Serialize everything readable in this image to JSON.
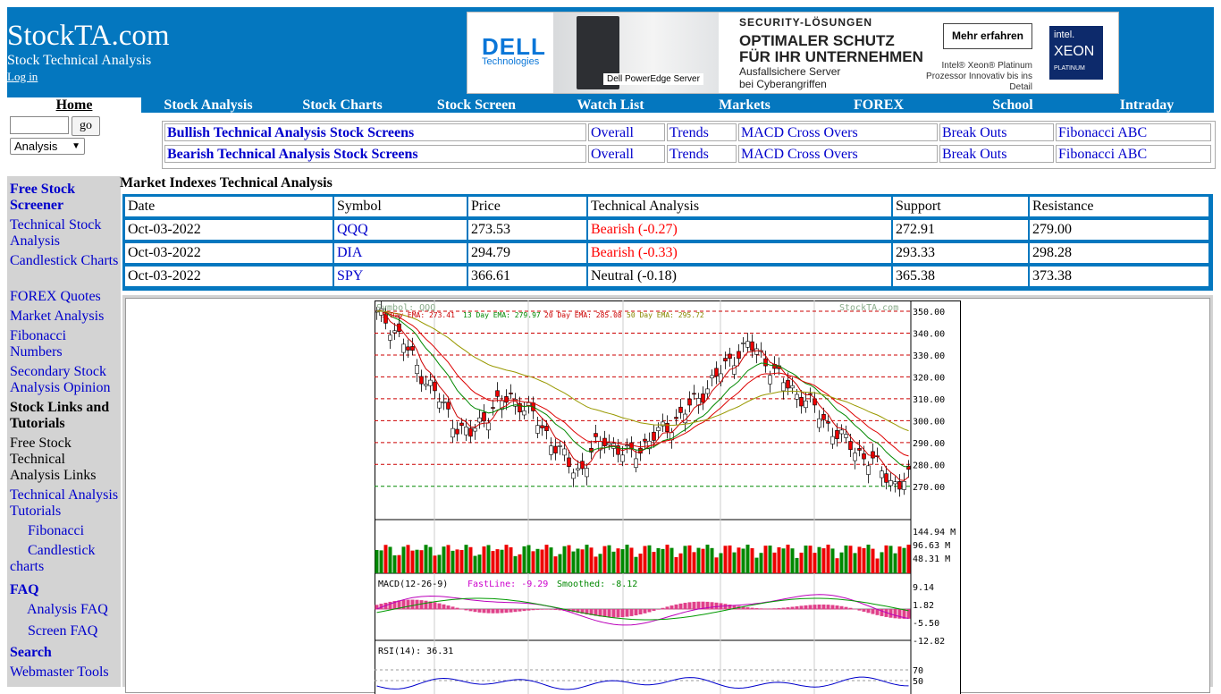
{
  "site": {
    "title": "StockTA.com",
    "subtitle": "Stock Technical Analysis",
    "login": "Log in"
  },
  "ad": {
    "brand": "DELL",
    "brand_sub": "Technologies",
    "server_caption": "Dell PowerEdge Server",
    "kicker": "SECURITY-LÖSUNGEN",
    "headline1": "OPTIMALER SCHUTZ",
    "headline2": "FÜR IHR UNTERNEHMEN",
    "body1": "Ausfallsichere Server",
    "body2": "bei Cyberangriffen",
    "cta": "Mehr erfahren",
    "note1": "Intel® Xeon® Platinum",
    "note2": "Prozessor Innovativ bis ins Detail",
    "intel": "intel.",
    "xeon": "XEON",
    "platinum": "PLATINUM"
  },
  "nav": {
    "home": "Home",
    "items": [
      "Stock Analysis",
      "Stock Charts",
      "Stock Screen",
      "Watch List",
      "Markets",
      "FOREX",
      "School",
      "Intraday"
    ]
  },
  "search": {
    "value": "",
    "go": "go",
    "select": "Analysis"
  },
  "screens": {
    "rows": [
      {
        "title": "Bullish Technical Analysis Stock Screens",
        "links": [
          "Overall",
          "Trends",
          "MACD Cross Overs",
          "Break Outs",
          "Fibonacci ABC"
        ]
      },
      {
        "title": "Bearish Technical Analysis Stock Screens",
        "links": [
          "Overall",
          "Trends",
          "MACD Cross Overs",
          "Break Outs",
          "Fibonacci ABC"
        ]
      }
    ]
  },
  "sidebar": {
    "free_screener": "Free Stock Screener",
    "ta": "Technical Stock Analysis",
    "candle": "Candlestick Charts",
    "forex": "FOREX Quotes",
    "market": "Market Analysis",
    "fib": "Fibonacci Numbers",
    "secondary": "Secondary Stock Analysis Opinion",
    "links_head": "Stock Links and Tutorials",
    "free_links": "Free Stock Technical Analysis Links",
    "tutorials": "Technical Analysis Tutorials",
    "fib_sub": "Fibonacci",
    "candle_sub": "Candlestick charts",
    "faq": "FAQ",
    "analysis_faq": "Analysis FAQ",
    "screen_faq": "Screen FAQ",
    "search": "Search",
    "webmaster": "Webmaster Tools"
  },
  "main": {
    "title": "Market Indexes Technical Analysis"
  },
  "table": {
    "headers": [
      "Date",
      "Symbol",
      "Price",
      "Technical Analysis",
      "Support",
      "Resistance"
    ],
    "rows": [
      {
        "date": "Oct-03-2022",
        "symbol": "QQQ",
        "price": "273.53",
        "ta": "Bearish (-0.27)",
        "ta_color": "#ff0000",
        "support": "272.91",
        "resistance": "279.00"
      },
      {
        "date": "Oct-03-2022",
        "symbol": "DIA",
        "price": "294.79",
        "ta": "Bearish (-0.33)",
        "ta_color": "#ff0000",
        "support": "293.33",
        "resistance": "298.28"
      },
      {
        "date": "Oct-03-2022",
        "symbol": "SPY",
        "price": "366.61",
        "ta": "Neutral (-0.18)",
        "ta_color": "#000000",
        "support": "365.38",
        "resistance": "373.38"
      }
    ]
  },
  "chart": {
    "symbol_label": "Symbol: QQQ",
    "watermark": "StockTA.com",
    "ema5": "5 Day EMA: 273.41",
    "ema13": "13 Day EMA: 279.97",
    "ema20": "20 Day EMA: 285.08",
    "ema50": "50 Day EMA: 295.72",
    "price_ticks": [
      "350.00",
      "340.00",
      "330.00",
      "320.00",
      "310.00",
      "300.00",
      "290.00",
      "280.00",
      "270.00"
    ],
    "price_tick_values": [
      350,
      340,
      330,
      320,
      310,
      300,
      290,
      280,
      270
    ],
    "volume_ticks": [
      "144.94 M",
      "96.63 M",
      "48.31 M"
    ],
    "macd_label": "MACD(12-26-9)",
    "macd_fast": "FastLine: -9.29",
    "macd_smooth": "Smoothed: -8.12",
    "macd_ticks": [
      "9.14",
      "1.82",
      "-5.50",
      "-12.82"
    ],
    "rsi_label": "RSI(14): 36.31",
    "rsi_ticks": [
      "70",
      "50"
    ]
  }
}
